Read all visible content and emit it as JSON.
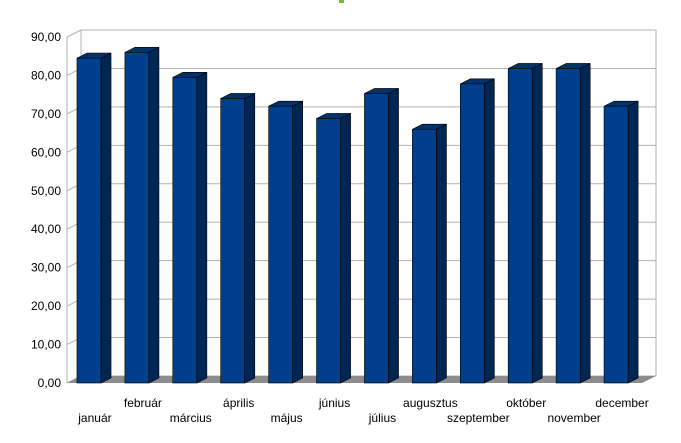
{
  "chart_data": {
    "type": "bar",
    "title": "",
    "xlabel": "",
    "ylabel": "",
    "ylim": [
      0,
      90
    ],
    "y_tick_step": 10,
    "y_tick_labels": [
      "0,00",
      "10,00",
      "20,00",
      "30,00",
      "40,00",
      "50,00",
      "60,00",
      "70,00",
      "80,00",
      "90,00"
    ],
    "categories": [
      "január",
      "február",
      "március",
      "április",
      "május",
      "június",
      "július",
      "augusztus",
      "szeptember",
      "október",
      "november",
      "december"
    ],
    "values": [
      84.5,
      86.0,
      79.5,
      74.0,
      72.0,
      68.8,
      75.3,
      66.0,
      77.8,
      81.8,
      81.8,
      72.0
    ],
    "grid": true,
    "legend": "none",
    "style": "3d",
    "colors": {
      "bar_front": "#003f8c",
      "bar_side": "#002654",
      "bar_top": "#00326f",
      "floor": "#8c8c8c",
      "gridline": "#b3b3b3",
      "wall_edge": "#b3b3b3"
    }
  },
  "header": {
    "marker_color": "#6ac22b"
  }
}
